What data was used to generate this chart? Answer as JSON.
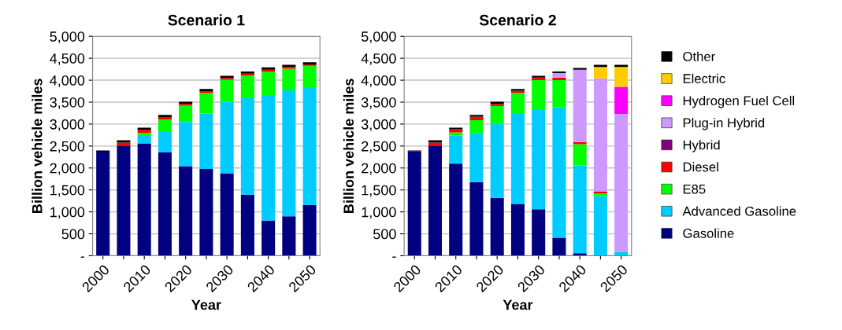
{
  "chart_data": [
    {
      "type": "bar",
      "title": "Scenario 1",
      "xlabel": "Year",
      "ylabel": "Billion vehicle miles",
      "stacked": true,
      "grid": "y",
      "legend": false,
      "categories": [
        "2000",
        null,
        "2010",
        null,
        "2020",
        null,
        "2030",
        null,
        "2040",
        null,
        "2050"
      ],
      "ylim": [
        0,
        5000
      ],
      "yticks": [
        {
          "value": 0,
          "label": "-"
        },
        {
          "value": 500,
          "label": "500"
        },
        {
          "value": 1000,
          "label": "1,000"
        },
        {
          "value": 1500,
          "label": "1,500"
        },
        {
          "value": 2000,
          "label": "2,000"
        },
        {
          "value": 2500,
          "label": "2,500"
        },
        {
          "value": 3000,
          "label": "3,000"
        },
        {
          "value": 3500,
          "label": "3,500"
        },
        {
          "value": 4000,
          "label": "4,000"
        },
        {
          "value": 4500,
          "label": "4,500"
        },
        {
          "value": 5000,
          "label": "5,000"
        }
      ],
      "series": [
        {
          "color": "#000080",
          "values": [
            2370,
            2510,
            2560,
            2360,
            2040,
            1980,
            1870,
            1390,
            800,
            900,
            1160
          ]
        },
        {
          "color": "#00ccff",
          "values": [
            0,
            0,
            170,
            460,
            1010,
            1260,
            1640,
            2200,
            2860,
            2870,
            2680
          ]
        },
        {
          "color": "#00ff00",
          "values": [
            0,
            0,
            70,
            280,
            370,
            470,
            500,
            520,
            540,
            490,
            490
          ]
        },
        {
          "color": "#ff0000",
          "values": [
            0,
            70,
            70,
            60,
            40,
            40,
            40,
            40,
            40,
            40,
            30
          ]
        },
        {
          "color": "#000000",
          "values": [
            30,
            50,
            50,
            50,
            50,
            50,
            50,
            50,
            50,
            50,
            50
          ]
        }
      ]
    },
    {
      "type": "bar",
      "title": "Scenario 2",
      "xlabel": "Year",
      "ylabel": "Billion vehicle miles",
      "stacked": true,
      "grid": "y",
      "legend": "right",
      "categories": [
        "2000",
        null,
        "2010",
        null,
        "2020",
        null,
        "2030",
        null,
        "2040",
        null,
        "2050"
      ],
      "ylim": [
        0,
        5000
      ],
      "yticks": [
        {
          "value": 0,
          "label": "-"
        },
        {
          "value": 500,
          "label": "500"
        },
        {
          "value": 1000,
          "label": "1,000"
        },
        {
          "value": 1500,
          "label": "1,500"
        },
        {
          "value": 2000,
          "label": "2,000"
        },
        {
          "value": 2500,
          "label": "2,500"
        },
        {
          "value": 3000,
          "label": "3,000"
        },
        {
          "value": 3500,
          "label": "3,500"
        },
        {
          "value": 4000,
          "label": "4,000"
        },
        {
          "value": 4500,
          "label": "4,500"
        },
        {
          "value": 5000,
          "label": "5,000"
        }
      ],
      "series": [
        {
          "name": "Gasoline",
          "color": "#000080",
          "values": [
            2380,
            2510,
            2100,
            1680,
            1320,
            1180,
            1060,
            410,
            60,
            0,
            0
          ]
        },
        {
          "name": "Advanced Gasoline",
          "color": "#00ccff",
          "values": [
            0,
            0,
            640,
            1110,
            1690,
            2050,
            2280,
            2970,
            2000,
            1360,
            90
          ]
        },
        {
          "name": "E85",
          "color": "#00ff00",
          "values": [
            0,
            0,
            70,
            300,
            400,
            480,
            660,
            620,
            480,
            60,
            0
          ]
        },
        {
          "name": "Diesel",
          "color": "#ff0000",
          "values": [
            0,
            70,
            70,
            80,
            50,
            50,
            60,
            60,
            50,
            40,
            0
          ]
        },
        {
          "name": "Hybrid",
          "color": "#800080",
          "values": [
            0,
            0,
            0,
            0,
            0,
            0,
            0,
            0,
            0,
            0,
            0
          ]
        },
        {
          "name": "Plug-in Hybrid",
          "color": "#cc99ff",
          "values": [
            0,
            0,
            0,
            0,
            0,
            0,
            0,
            100,
            1650,
            2580,
            3140
          ]
        },
        {
          "name": "Hydrogen Fuel Cell",
          "color": "#ff00ff",
          "values": [
            0,
            0,
            0,
            0,
            0,
            0,
            0,
            0,
            0,
            0,
            620
          ]
        },
        {
          "name": "Electric",
          "color": "#ffcc00",
          "values": [
            0,
            0,
            0,
            0,
            0,
            0,
            0,
            0,
            0,
            260,
            450
          ]
        },
        {
          "name": "Other",
          "color": "#000000",
          "values": [
            20,
            50,
            40,
            40,
            50,
            40,
            40,
            40,
            40,
            50,
            50
          ]
        }
      ]
    }
  ]
}
